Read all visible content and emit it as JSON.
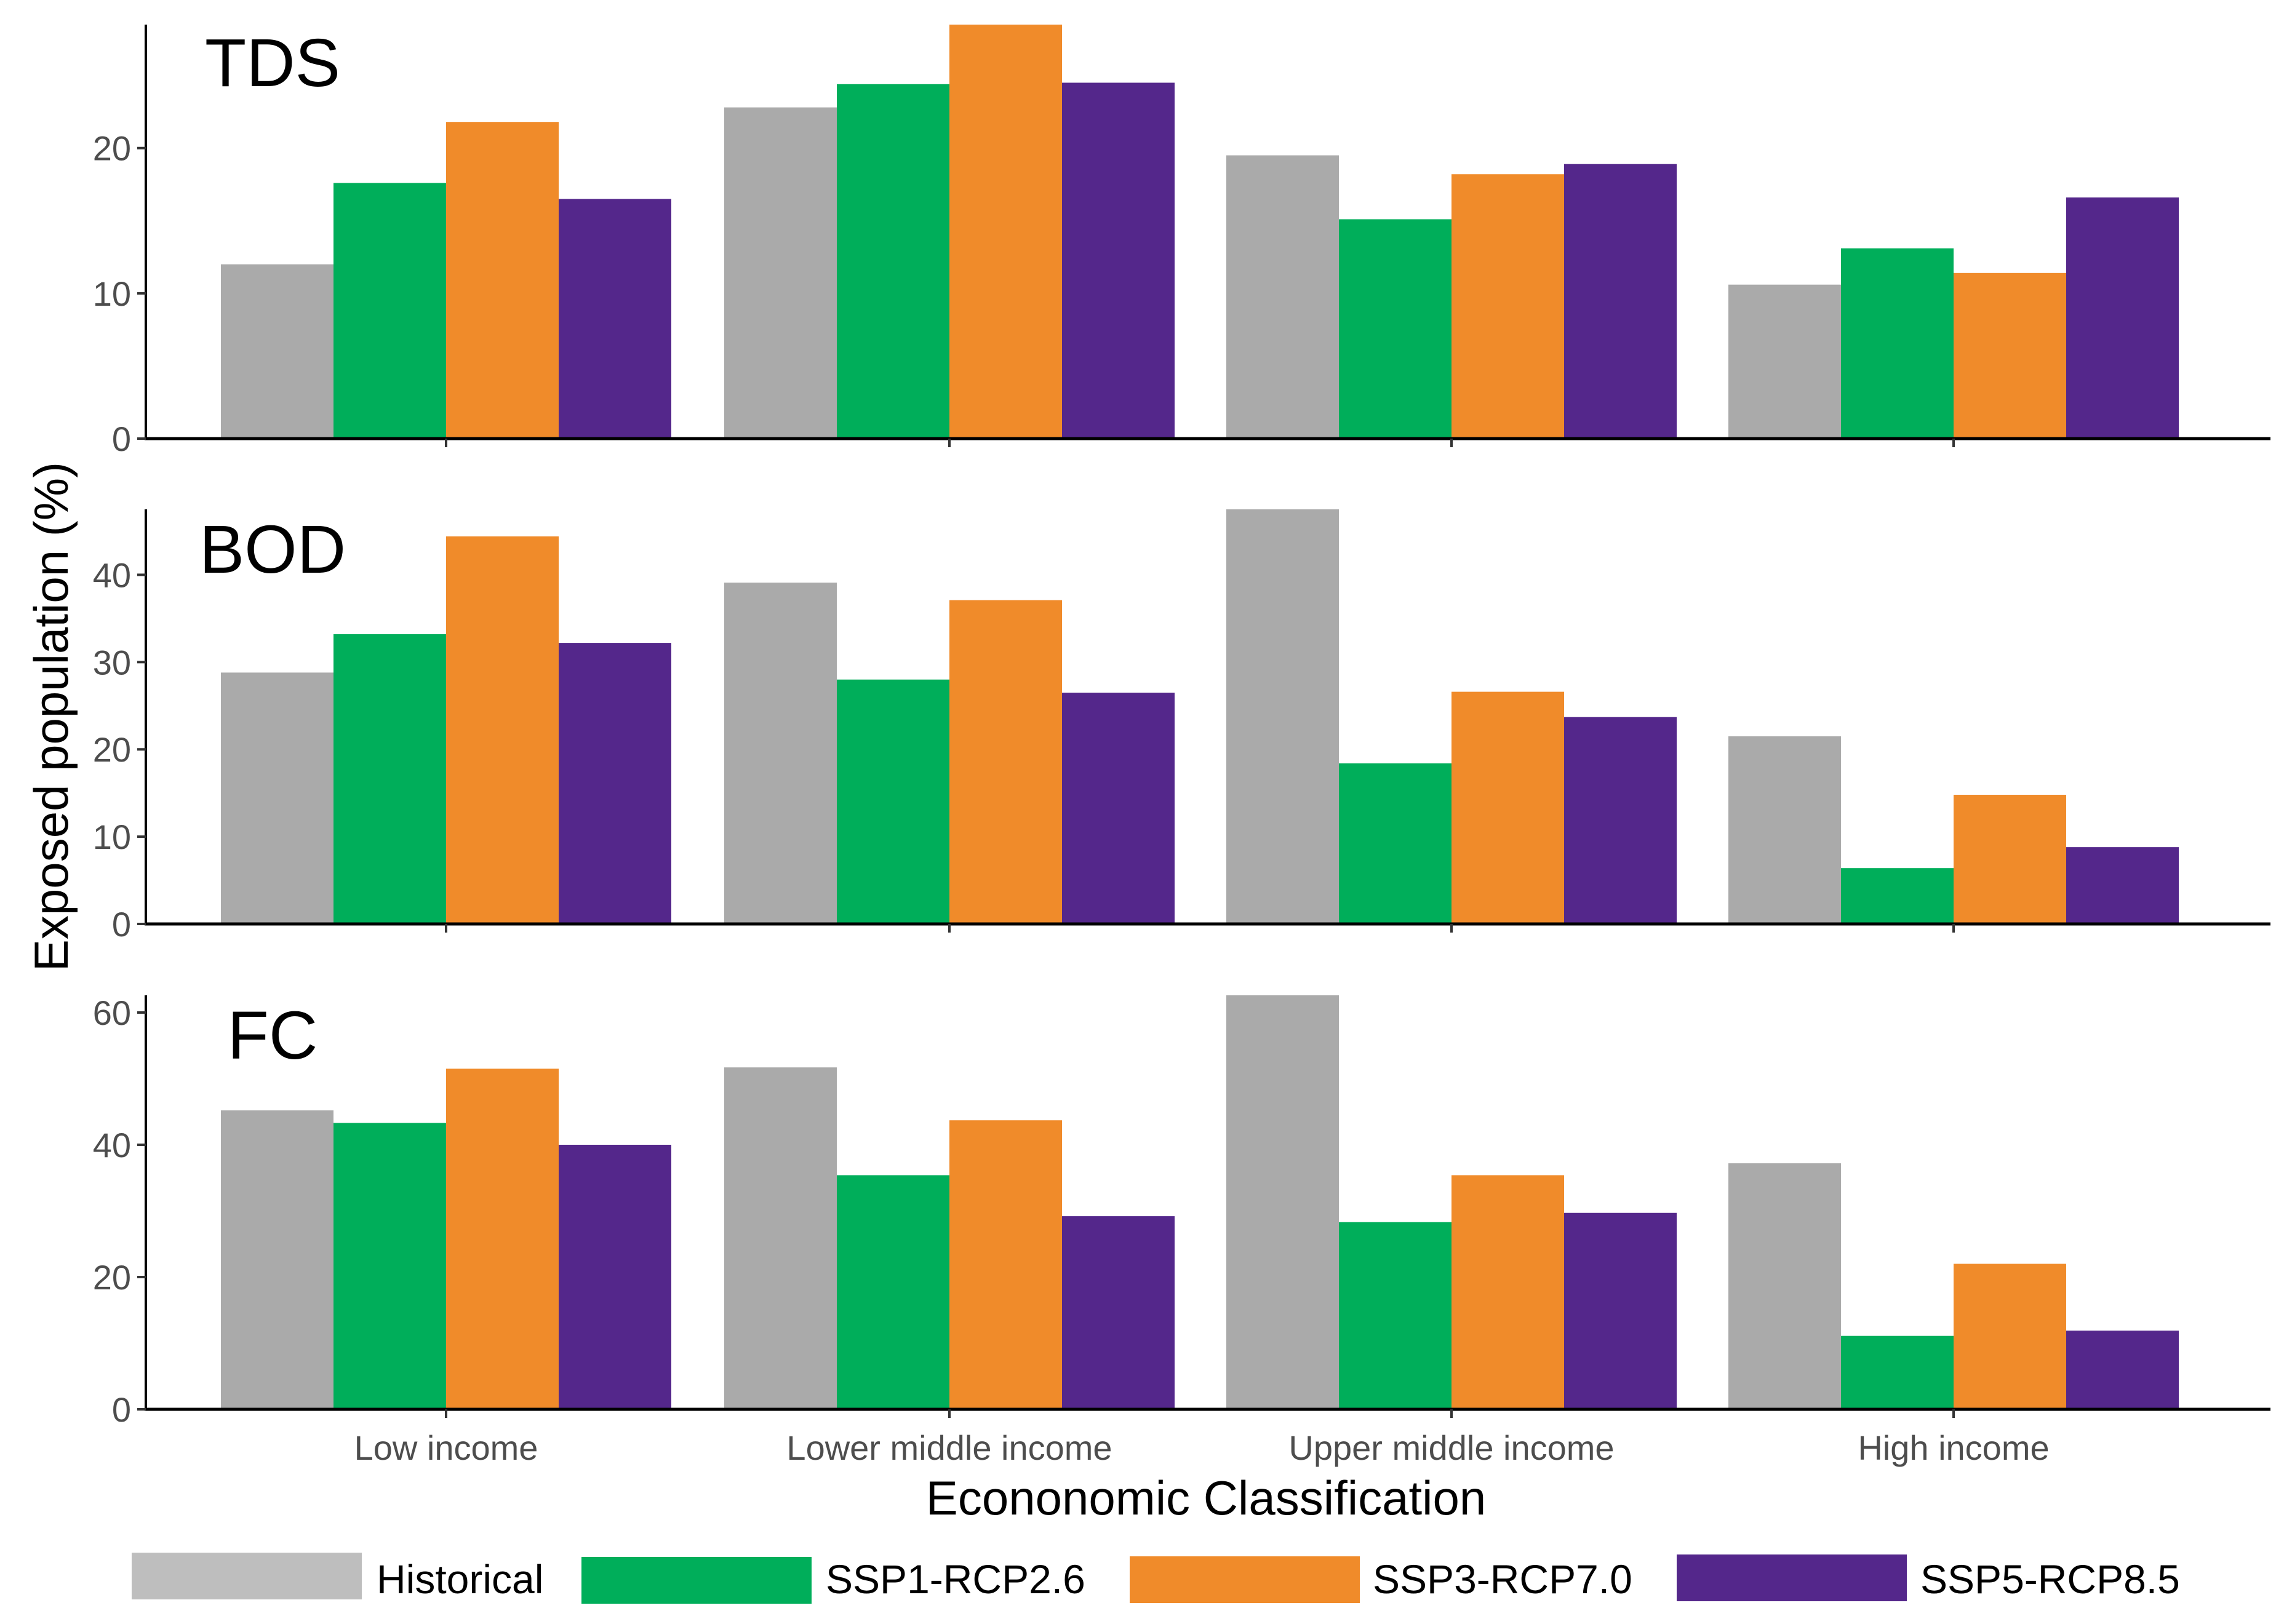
{
  "chart_data": {
    "type": "bar",
    "title": "",
    "xlabel": "Econonomic Classification",
    "ylabel": "Exposed population (%)",
    "categories": [
      "Low income",
      "Lower middle income",
      "Upper middle income",
      "High income"
    ],
    "legend": {
      "position": "bottom",
      "entries": [
        {
          "name": "Historical",
          "color": "#bebebe"
        },
        {
          "name": "SSP1-RCP2.6",
          "color": "#00ae5a"
        },
        {
          "name": "SSP3-RCP7.0",
          "color": "#f08b2a"
        },
        {
          "name": "SSP5-RCP8.5",
          "color": "#54278b"
        }
      ]
    },
    "series_colors": {
      "Historical": "#aaaaaa",
      "SSP1-RCP2.6": "#00ae5a",
      "SSP3-RCP7.0": "#f08b2a",
      "SSP5-RCP8.5": "#54278b"
    },
    "grid": false,
    "panels": [
      {
        "label": "TDS",
        "ylim": [
          0,
          28.5
        ],
        "yticks": [
          0,
          10,
          20
        ],
        "series": [
          {
            "name": "Historical",
            "values": [
              12.0,
              22.8,
              19.5,
              10.6
            ]
          },
          {
            "name": "SSP1-RCP2.6",
            "values": [
              17.6,
              24.4,
              15.1,
              13.1
            ]
          },
          {
            "name": "SSP3-RCP7.0",
            "values": [
              21.8,
              28.5,
              18.2,
              11.4
            ]
          },
          {
            "name": "SSP5-RCP8.5",
            "values": [
              16.5,
              24.5,
              18.9,
              16.6
            ]
          }
        ]
      },
      {
        "label": "BOD",
        "ylim": [
          0,
          47.5
        ],
        "yticks": [
          0,
          10,
          20,
          30,
          40
        ],
        "series": [
          {
            "name": "Historical",
            "values": [
              28.8,
              39.1,
              47.5,
              21.5
            ]
          },
          {
            "name": "SSP1-RCP2.6",
            "values": [
              33.2,
              28.0,
              18.4,
              6.4
            ]
          },
          {
            "name": "SSP3-RCP7.0",
            "values": [
              44.4,
              37.1,
              26.6,
              14.8
            ]
          },
          {
            "name": "SSP5-RCP8.5",
            "values": [
              32.2,
              26.5,
              23.7,
              8.8
            ]
          }
        ]
      },
      {
        "label": "FC",
        "ylim": [
          0,
          62.6
        ],
        "yticks": [
          0,
          20,
          40,
          60
        ],
        "series": [
          {
            "name": "Historical",
            "values": [
              45.2,
              51.7,
              62.6,
              37.2
            ]
          },
          {
            "name": "SSP1-RCP2.6",
            "values": [
              43.3,
              35.4,
              28.3,
              11.1
            ]
          },
          {
            "name": "SSP3-RCP7.0",
            "values": [
              51.5,
              43.7,
              35.4,
              22.0
            ]
          },
          {
            "name": "SSP5-RCP8.5",
            "values": [
              40.0,
              29.2,
              29.7,
              11.9
            ]
          }
        ]
      }
    ]
  }
}
